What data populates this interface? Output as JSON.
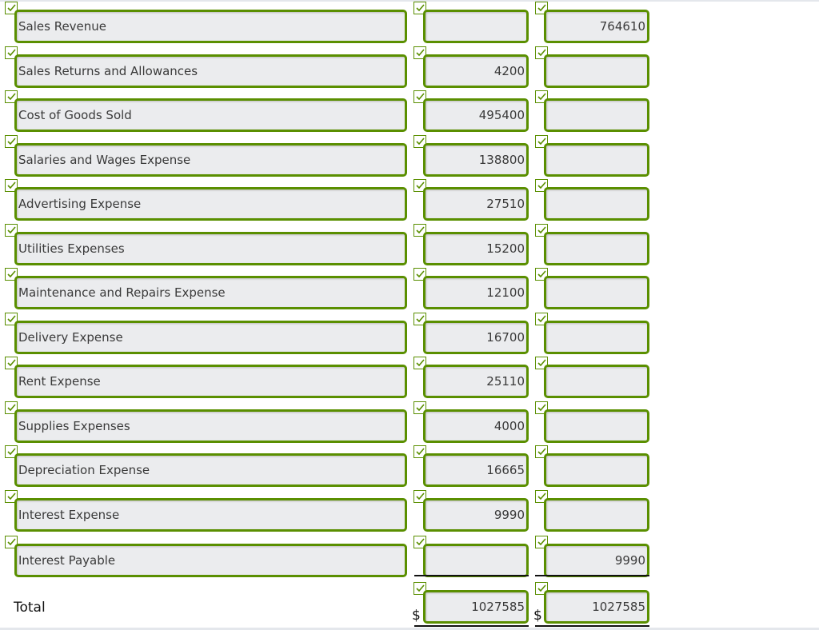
{
  "rows": [
    {
      "account": "Sales Revenue",
      "debit": "",
      "credit": "764610"
    },
    {
      "account": "Sales Returns and Allowances",
      "debit": "4200",
      "credit": ""
    },
    {
      "account": "Cost of Goods Sold",
      "debit": "495400",
      "credit": ""
    },
    {
      "account": "Salaries and Wages Expense",
      "debit": "138800",
      "credit": ""
    },
    {
      "account": "Advertising Expense",
      "debit": "27510",
      "credit": ""
    },
    {
      "account": "Utilities Expenses",
      "debit": "15200",
      "credit": ""
    },
    {
      "account": "Maintenance and Repairs Expense",
      "debit": "12100",
      "credit": ""
    },
    {
      "account": "Delivery Expense",
      "debit": "16700",
      "credit": ""
    },
    {
      "account": "Rent Expense",
      "debit": "25110",
      "credit": ""
    },
    {
      "account": "Supplies Expenses",
      "debit": "4000",
      "credit": ""
    },
    {
      "account": "Depreciation Expense",
      "debit": "16665",
      "credit": ""
    },
    {
      "account": "Interest Expense",
      "debit": "9990",
      "credit": ""
    },
    {
      "account": "Interest Payable",
      "debit": "",
      "credit": "9990"
    }
  ],
  "total": {
    "label": "Total",
    "currency": "$",
    "debit": "1027585",
    "credit": "1027585"
  },
  "colors": {
    "correct_border": "#5a8f00",
    "field_bg": "#ebecee"
  },
  "icons": {
    "status": "checkmark-icon"
  }
}
